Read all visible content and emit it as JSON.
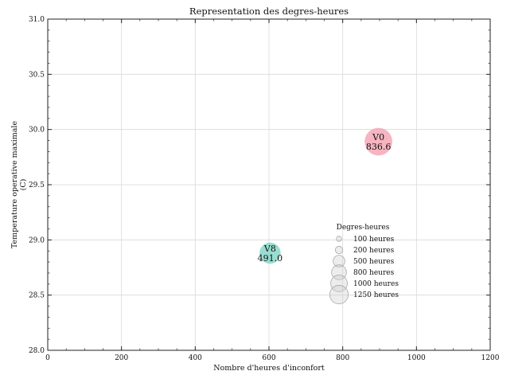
{
  "chart_data": {
    "type": "scatter",
    "title": "Representation des degres-heures",
    "xlabel": "Nombre d'heures d'inconfort",
    "ylabel_lines": [
      "Temperature operative maximale",
      "(C)"
    ],
    "xlim": [
      0,
      1200
    ],
    "ylim": [
      28.0,
      31.0
    ],
    "x_ticks": [
      0,
      200,
      400,
      600,
      800,
      1000,
      1200
    ],
    "x_tick_labels": [
      "0",
      "200",
      "400",
      "600",
      "800",
      "1000",
      "1200"
    ],
    "y_ticks": [
      28.0,
      28.5,
      29.0,
      29.5,
      30.0,
      30.5,
      31.0
    ],
    "y_tick_labels": [
      "28.0",
      "28.5",
      "29.0",
      "29.5",
      "30.0",
      "30.5",
      "31.0"
    ],
    "grid": true,
    "points": [
      {
        "name": "V0",
        "x": 897,
        "y": 29.89,
        "size": 836.6,
        "size_label": "836.6",
        "color": "#f4a3b2"
      },
      {
        "name": "V8",
        "x": 603,
        "y": 28.88,
        "size": 491.0,
        "size_label": "491.0",
        "color": "#7fd4c6"
      }
    ],
    "size_legend": {
      "title": "Degres-heures",
      "position": "center-right",
      "color": "#cccccc",
      "entries": [
        {
          "value": 100,
          "label": "100 heures"
        },
        {
          "value": 200,
          "label": "200 heures"
        },
        {
          "value": 500,
          "label": "500 heures"
        },
        {
          "value": 800,
          "label": "800 heures"
        },
        {
          "value": 1000,
          "label": "1000 heures"
        },
        {
          "value": 1250,
          "label": "1250 heures"
        }
      ]
    }
  }
}
